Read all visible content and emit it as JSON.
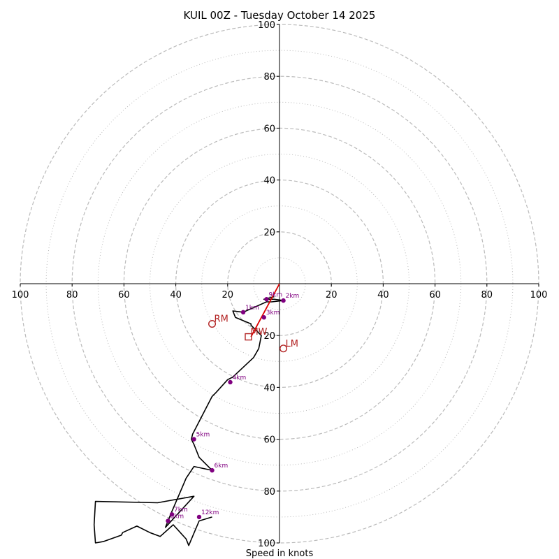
{
  "chart_data": {
    "type": "hodograph",
    "title": "KUIL 00Z - Tuesday October 14 2025",
    "xlabel": "Speed in knots",
    "range": [
      -100,
      100
    ],
    "major_rings": [
      20,
      40,
      60,
      80,
      100
    ],
    "minor_rings": [
      10,
      30,
      50,
      70,
      90
    ],
    "x_ticks": [
      {
        "value": -100,
        "label": "100"
      },
      {
        "value": -80,
        "label": "80"
      },
      {
        "value": -60,
        "label": "60"
      },
      {
        "value": -40,
        "label": "40"
      },
      {
        "value": -20,
        "label": "20"
      },
      {
        "value": 20,
        "label": "20"
      },
      {
        "value": 40,
        "label": "40"
      },
      {
        "value": 60,
        "label": "60"
      },
      {
        "value": 80,
        "label": "80"
      },
      {
        "value": 100,
        "label": "100"
      }
    ],
    "y_ticks": [
      {
        "value": 100,
        "label": "100"
      },
      {
        "value": 80,
        "label": "80"
      },
      {
        "value": 60,
        "label": "60"
      },
      {
        "value": 40,
        "label": "40"
      },
      {
        "value": 20,
        "label": "20"
      },
      {
        "value": -20,
        "label": "20"
      },
      {
        "value": -40,
        "label": "40"
      },
      {
        "value": -60,
        "label": "60"
      },
      {
        "value": -80,
        "label": "80"
      },
      {
        "value": -100,
        "label": "100"
      }
    ],
    "trace": [
      [
        -2,
        -5
      ],
      [
        -4,
        -5.5
      ],
      [
        -6,
        -6
      ],
      [
        -2,
        -6
      ],
      [
        1.5,
        -6.5
      ],
      [
        -3,
        -7
      ],
      [
        -5,
        -7
      ],
      [
        -14,
        -11
      ],
      [
        -18,
        -10.5
      ],
      [
        -17,
        -13
      ],
      [
        -11,
        -15.5
      ],
      [
        -11,
        -16
      ],
      [
        -9,
        -18
      ],
      [
        -7,
        -20
      ],
      [
        -8,
        -25
      ],
      [
        -10,
        -28.5
      ],
      [
        -18,
        -36
      ],
      [
        -20,
        -37
      ],
      [
        -24.5,
        -42
      ],
      [
        -26,
        -43.5
      ],
      [
        -33.5,
        -58
      ],
      [
        -34,
        -60
      ],
      [
        -33,
        -62
      ],
      [
        -31,
        -67
      ],
      [
        -26,
        -72
      ],
      [
        -33,
        -70.5
      ],
      [
        -36,
        -75
      ],
      [
        -42,
        -89
      ],
      [
        -44,
        -94
      ],
      [
        -33,
        -82
      ],
      [
        -47,
        -84.5
      ],
      [
        -71,
        -84
      ],
      [
        -71.5,
        -93
      ],
      [
        -71,
        -100
      ],
      [
        -68,
        -99.5
      ],
      [
        -61,
        -97
      ],
      [
        -60.5,
        -96
      ],
      [
        -55,
        -93.5
      ],
      [
        -50,
        -96
      ],
      [
        -46,
        -97.5
      ],
      [
        -41,
        -93
      ],
      [
        -36,
        -98.5
      ],
      [
        -35,
        -101
      ],
      [
        -31,
        -91.5
      ],
      [
        -26,
        -90
      ]
    ],
    "height_markers": [
      {
        "label": "1km",
        "u": -14,
        "v": -11
      },
      {
        "label": "2km",
        "u": 1.5,
        "v": -6.5
      },
      {
        "label": "3km",
        "u": -6,
        "v": -13
      },
      {
        "label": "4km",
        "u": -19,
        "v": -38
      },
      {
        "label": "5km",
        "u": -33,
        "v": -60
      },
      {
        "label": "6km",
        "u": -26,
        "v": -72
      },
      {
        "label": "7km",
        "u": -41.5,
        "v": -89
      },
      {
        "label": "8km",
        "u": -43,
        "v": -91.5
      },
      {
        "label": "9km",
        "u": -5,
        "v": -6
      },
      {
        "label": "12km",
        "u": -31,
        "v": -90
      }
    ],
    "shear_vector": {
      "from": [
        0,
        0
      ],
      "to": [
        -11,
        -20.5
      ]
    },
    "storm_motions": [
      {
        "label": "RM",
        "symbol": "circle",
        "u": -26,
        "v": -15.5
      },
      {
        "label": "LM",
        "symbol": "circle",
        "u": 1.5,
        "v": -25
      },
      {
        "label": "MW",
        "symbol": "square",
        "u": -12,
        "v": -20.5
      }
    ],
    "colors": {
      "trace": "#000000",
      "marker": "#800080",
      "storm": "#b22222",
      "shear": "#dd0000",
      "grid": "#bbbbbb",
      "axis": "#000000",
      "text": "#000000"
    }
  }
}
